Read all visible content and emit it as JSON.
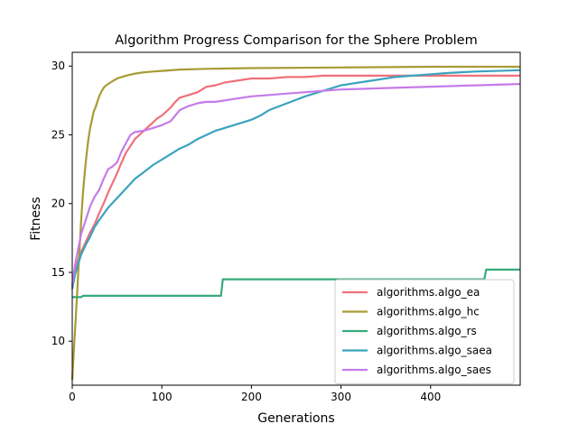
{
  "chart_data": {
    "type": "line",
    "title": "Algorithm Progress Comparison for the Sphere Problem",
    "xlabel": "Generations",
    "ylabel": "Fitness",
    "xlim": [
      0,
      500
    ],
    "ylim": [
      6.8,
      31
    ],
    "xticks": [
      0,
      100,
      200,
      300,
      400
    ],
    "yticks": [
      10,
      15,
      20,
      25,
      30
    ],
    "grid": false,
    "legend_position": "lower-right",
    "series": [
      {
        "name": "algorithms.algo_ea",
        "color": "#f0707a",
        "x": [
          0,
          3,
          6,
          10,
          15,
          20,
          25,
          30,
          35,
          40,
          45,
          50,
          55,
          60,
          65,
          70,
          75,
          80,
          85,
          90,
          95,
          100,
          105,
          110,
          115,
          120,
          130,
          140,
          150,
          160,
          170,
          180,
          190,
          200,
          220,
          240,
          260,
          280,
          300,
          350,
          400,
          450,
          500
        ],
        "y": [
          14.0,
          15.0,
          15.8,
          16.5,
          17.2,
          17.9,
          18.5,
          19.3,
          20.0,
          20.8,
          21.5,
          22.2,
          23.0,
          23.7,
          24.2,
          24.7,
          25.0,
          25.3,
          25.6,
          25.9,
          26.2,
          26.4,
          26.7,
          27.0,
          27.4,
          27.7,
          27.9,
          28.1,
          28.5,
          28.6,
          28.8,
          28.9,
          29.0,
          29.1,
          29.1,
          29.2,
          29.2,
          29.3,
          29.3,
          29.3,
          29.3,
          29.3,
          29.3
        ]
      },
      {
        "name": "algorithms.algo_hc",
        "color": "#a89b35",
        "x": [
          0,
          2,
          4,
          6,
          8,
          10,
          12,
          14,
          16,
          18,
          20,
          22,
          24,
          26,
          28,
          30,
          33,
          36,
          40,
          45,
          50,
          55,
          60,
          70,
          80,
          90,
          100,
          120,
          150,
          200,
          300,
          400,
          500
        ],
        "y": [
          7.2,
          9.6,
          11.8,
          14.2,
          16.5,
          18.8,
          20.8,
          22.3,
          23.6,
          24.7,
          25.5,
          26.1,
          26.7,
          27.0,
          27.4,
          27.8,
          28.2,
          28.5,
          28.7,
          28.9,
          29.1,
          29.2,
          29.3,
          29.45,
          29.55,
          29.6,
          29.65,
          29.75,
          29.8,
          29.85,
          29.9,
          29.95,
          29.95
        ]
      },
      {
        "name": "algorithms.algo_rs",
        "color": "#36ab7a",
        "x": [
          0,
          10,
          12,
          166,
          168,
          460,
          462,
          500
        ],
        "y": [
          13.2,
          13.2,
          13.3,
          13.3,
          14.5,
          14.5,
          15.2,
          15.2
        ]
      },
      {
        "name": "algorithms.algo_saea",
        "color": "#3ba3be",
        "x": [
          0,
          3,
          6,
          10,
          15,
          20,
          25,
          30,
          40,
          50,
          60,
          70,
          80,
          90,
          100,
          110,
          120,
          130,
          140,
          150,
          160,
          170,
          180,
          190,
          200,
          210,
          220,
          240,
          260,
          280,
          300,
          320,
          340,
          360,
          380,
          400,
          420,
          450,
          500
        ],
        "y": [
          13.8,
          14.8,
          15.5,
          16.3,
          17.0,
          17.6,
          18.3,
          18.8,
          19.7,
          20.4,
          21.1,
          21.8,
          22.3,
          22.8,
          23.2,
          23.6,
          24.0,
          24.3,
          24.7,
          25.0,
          25.3,
          25.5,
          25.7,
          25.9,
          26.1,
          26.4,
          26.8,
          27.3,
          27.8,
          28.2,
          28.6,
          28.8,
          29.0,
          29.2,
          29.3,
          29.4,
          29.5,
          29.6,
          29.7
        ]
      },
      {
        "name": "algorithms.algo_saes",
        "color": "#c57be9",
        "x": [
          0,
          3,
          6,
          10,
          15,
          20,
          25,
          30,
          35,
          40,
          45,
          50,
          55,
          60,
          65,
          70,
          80,
          90,
          100,
          110,
          120,
          130,
          140,
          150,
          160,
          170,
          180,
          190,
          200,
          220,
          240,
          260,
          280,
          300,
          350,
          400,
          450,
          500
        ],
        "y": [
          14.0,
          15.5,
          16.5,
          17.8,
          18.8,
          19.8,
          20.5,
          21.0,
          21.8,
          22.5,
          22.7,
          23.0,
          23.8,
          24.4,
          25.0,
          25.2,
          25.3,
          25.5,
          25.7,
          26.0,
          26.8,
          27.1,
          27.3,
          27.4,
          27.4,
          27.5,
          27.6,
          27.7,
          27.8,
          27.9,
          28.0,
          28.1,
          28.2,
          28.3,
          28.4,
          28.5,
          28.6,
          28.7
        ]
      }
    ]
  }
}
